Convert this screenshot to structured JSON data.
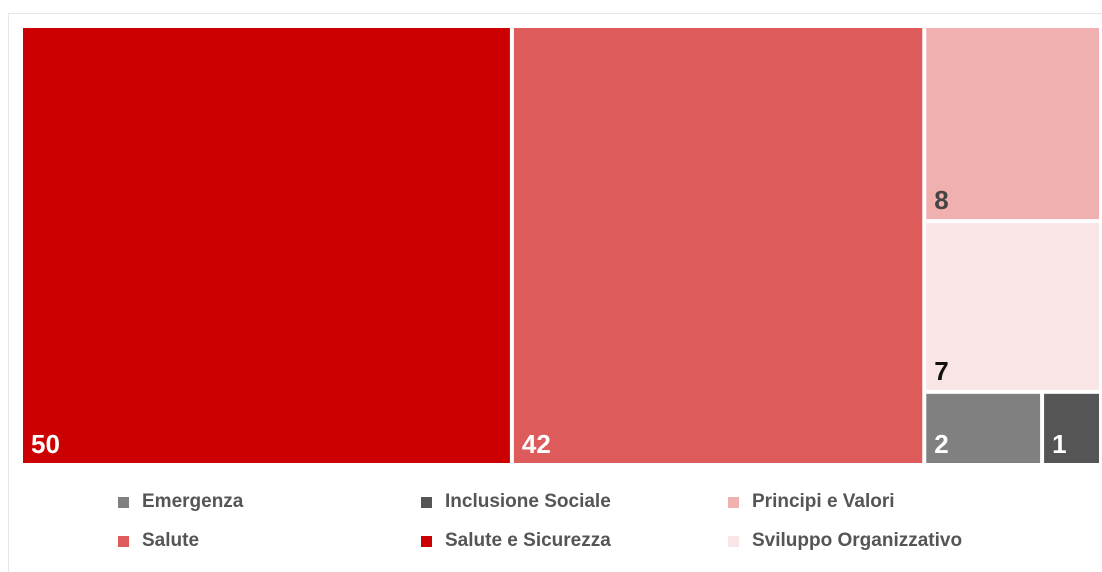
{
  "chart_data": {
    "type": "treemap",
    "title": "",
    "items": [
      {
        "name": "Salute e Sicurezza",
        "value": 50,
        "color": "#cc0000",
        "label_color": "#ffffff"
      },
      {
        "name": "Salute",
        "value": 42,
        "color": "#dd5b5b",
        "label_color": "#ffffff"
      },
      {
        "name": "Principi e Valori",
        "value": 8,
        "color": "#f0b0b0",
        "label_color": "#444444"
      },
      {
        "name": "Sviluppo Organizzativo",
        "value": 7,
        "color": "#f9e5e5",
        "label_color": "#111111"
      },
      {
        "name": "Emergenza",
        "value": 2,
        "color": "#808080",
        "label_color": "#ffffff"
      },
      {
        "name": "Inclusione Sociale",
        "value": 1,
        "color": "#555555",
        "label_color": "#ffffff"
      }
    ],
    "legend": {
      "placement": "bottom",
      "entries": [
        {
          "label": "Emergenza",
          "color": "#808080"
        },
        {
          "label": "Inclusione Sociale",
          "color": "#555555"
        },
        {
          "label": "Principi e Valori",
          "color": "#f0b0b0"
        },
        {
          "label": "Salute",
          "color": "#dd5b5b"
        },
        {
          "label": "Salute e Sicurezza",
          "color": "#cc0000"
        },
        {
          "label": "Sviluppo Organizzativo",
          "color": "#f9e5e5"
        }
      ]
    }
  }
}
